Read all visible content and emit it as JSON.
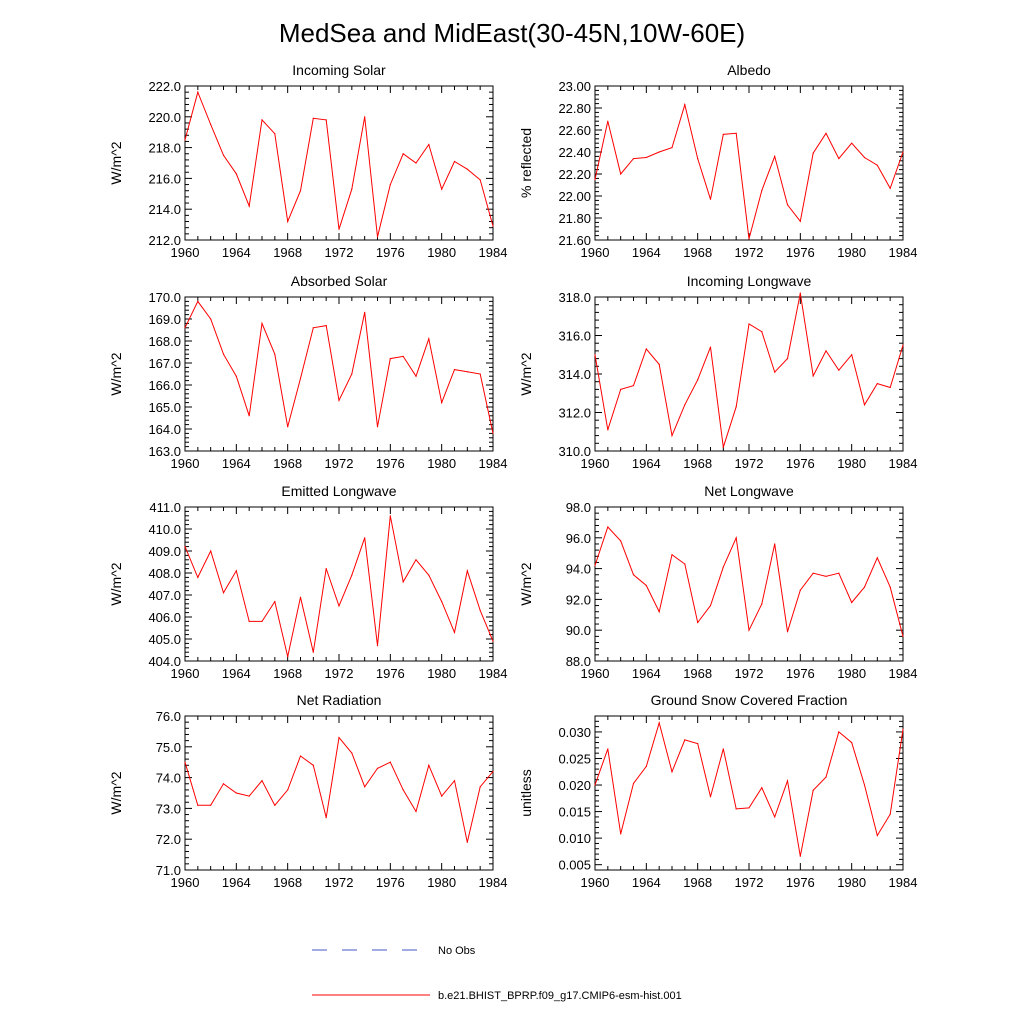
{
  "title": "MedSea and MidEast(30-45N,10W-60E)",
  "legend": {
    "entries": [
      {
        "label": "No Obs",
        "color": "#4455cc",
        "style": "dashed"
      },
      {
        "label": "b.e21.BHIST_BPRP.f09_g17.CMIP6-esm-hist.001",
        "color": "#ff0000",
        "style": "solid"
      }
    ]
  },
  "chart_data": [
    {
      "type": "line",
      "title": "Incoming Solar",
      "ylabel": "W/m^2",
      "xlim": [
        1960,
        1984
      ],
      "ylim": [
        212,
        222
      ],
      "xticks": [
        "1960",
        "1964",
        "1968",
        "1972",
        "1976",
        "1980",
        "1984"
      ],
      "yticks": [
        "212.0",
        "214.0",
        "216.0",
        "218.0",
        "220.0",
        "222.0"
      ],
      "series": [
        {
          "color": "#ff0000",
          "x": [
            1960,
            1961,
            1962,
            1963,
            1964,
            1965,
            1966,
            1967,
            1968,
            1969,
            1970,
            1971,
            1972,
            1973,
            1974,
            1975,
            1976,
            1977,
            1978,
            1979,
            1980,
            1981,
            1982,
            1983,
            1984
          ],
          "values": [
            218.5,
            221.6,
            219.5,
            217.5,
            216.3,
            214.2,
            219.8,
            218.9,
            213.2,
            215.2,
            219.9,
            219.8,
            212.7,
            215.3,
            220.0,
            212.2,
            215.6,
            217.6,
            217.0,
            218.2,
            215.3,
            217.1,
            216.6,
            215.9,
            212.9
          ]
        }
      ]
    },
    {
      "type": "line",
      "title": "Albedo",
      "ylabel": "% reflected",
      "xlim": [
        1960,
        1984
      ],
      "ylim": [
        21.6,
        23.0
      ],
      "xticks": [
        "1960",
        "1964",
        "1968",
        "1972",
        "1976",
        "1980",
        "1984"
      ],
      "yticks": [
        "21.60",
        "21.80",
        "22.00",
        "22.20",
        "22.40",
        "22.60",
        "22.80",
        "23.00"
      ],
      "series": [
        {
          "color": "#ff0000",
          "x": [
            1960,
            1961,
            1962,
            1963,
            1964,
            1965,
            1966,
            1967,
            1968,
            1969,
            1970,
            1971,
            1972,
            1973,
            1974,
            1975,
            1976,
            1977,
            1978,
            1979,
            1980,
            1981,
            1982,
            1983,
            1984
          ],
          "values": [
            22.15,
            22.68,
            22.2,
            22.34,
            22.35,
            22.4,
            22.44,
            22.83,
            22.34,
            21.97,
            22.56,
            22.57,
            21.61,
            22.05,
            22.36,
            21.92,
            21.77,
            22.39,
            22.57,
            22.34,
            22.48,
            22.35,
            22.28,
            22.07,
            22.4
          ]
        }
      ]
    },
    {
      "type": "line",
      "title": "Absorbed Solar",
      "ylabel": "W/m^2",
      "xlim": [
        1960,
        1984
      ],
      "ylim": [
        163,
        170
      ],
      "xticks": [
        "1960",
        "1964",
        "1968",
        "1972",
        "1976",
        "1980",
        "1984"
      ],
      "yticks": [
        "163.0",
        "164.0",
        "165.0",
        "166.0",
        "167.0",
        "168.0",
        "169.0",
        "170.0"
      ],
      "series": [
        {
          "color": "#ff0000",
          "x": [
            1960,
            1961,
            1962,
            1963,
            1964,
            1965,
            1966,
            1967,
            1968,
            1969,
            1970,
            1971,
            1972,
            1973,
            1974,
            1975,
            1976,
            1977,
            1978,
            1979,
            1980,
            1981,
            1982,
            1983,
            1984
          ],
          "values": [
            168.6,
            169.8,
            169.0,
            167.4,
            166.4,
            164.6,
            168.8,
            167.4,
            164.1,
            166.3,
            168.6,
            168.7,
            165.3,
            166.5,
            169.3,
            164.1,
            167.2,
            167.3,
            166.4,
            168.1,
            165.2,
            166.7,
            166.6,
            166.5,
            163.8
          ]
        }
      ]
    },
    {
      "type": "line",
      "title": "Incoming Longwave",
      "ylabel": "W/m^2",
      "xlim": [
        1960,
        1984
      ],
      "ylim": [
        310,
        318
      ],
      "xticks": [
        "1960",
        "1964",
        "1968",
        "1972",
        "1976",
        "1980",
        "1984"
      ],
      "yticks": [
        "310.0",
        "312.0",
        "314.0",
        "316.0",
        "318.0"
      ],
      "series": [
        {
          "color": "#ff0000",
          "x": [
            1960,
            1961,
            1962,
            1963,
            1964,
            1965,
            1966,
            1967,
            1968,
            1969,
            1970,
            1971,
            1972,
            1973,
            1974,
            1975,
            1976,
            1977,
            1978,
            1979,
            1980,
            1981,
            1982,
            1983,
            1984
          ],
          "values": [
            315.0,
            311.1,
            313.2,
            313.4,
            315.3,
            314.5,
            310.8,
            312.4,
            313.7,
            315.4,
            310.2,
            312.3,
            316.6,
            316.2,
            314.1,
            314.8,
            318.2,
            313.9,
            315.2,
            314.2,
            315.0,
            312.4,
            313.5,
            313.3,
            315.5
          ]
        }
      ]
    },
    {
      "type": "line",
      "title": "Emitted Longwave",
      "ylabel": "W/m^2",
      "xlim": [
        1960,
        1984
      ],
      "ylim": [
        404,
        411
      ],
      "xticks": [
        "1960",
        "1964",
        "1968",
        "1972",
        "1976",
        "1980",
        "1984"
      ],
      "yticks": [
        "404.0",
        "405.0",
        "406.0",
        "407.0",
        "408.0",
        "409.0",
        "410.0",
        "411.0"
      ],
      "series": [
        {
          "color": "#ff0000",
          "x": [
            1960,
            1961,
            1962,
            1963,
            1964,
            1965,
            1966,
            1967,
            1968,
            1969,
            1970,
            1971,
            1972,
            1973,
            1974,
            1975,
            1976,
            1977,
            1978,
            1979,
            1980,
            1981,
            1982,
            1983,
            1984
          ],
          "values": [
            409.2,
            407.8,
            409.0,
            407.1,
            408.1,
            405.8,
            405.8,
            406.7,
            404.2,
            406.9,
            404.4,
            408.2,
            406.5,
            407.9,
            409.6,
            404.7,
            410.6,
            407.6,
            408.6,
            407.9,
            406.7,
            405.3,
            408.1,
            406.3,
            404.9
          ]
        }
      ]
    },
    {
      "type": "line",
      "title": "Net Longwave",
      "ylabel": "W/m^2",
      "xlim": [
        1960,
        1984
      ],
      "ylim": [
        88,
        98
      ],
      "xticks": [
        "1960",
        "1964",
        "1968",
        "1972",
        "1976",
        "1980",
        "1984"
      ],
      "yticks": [
        "88.0",
        "90.0",
        "92.0",
        "94.0",
        "96.0",
        "98.0"
      ],
      "series": [
        {
          "color": "#ff0000",
          "x": [
            1960,
            1961,
            1962,
            1963,
            1964,
            1965,
            1966,
            1967,
            1968,
            1969,
            1970,
            1971,
            1972,
            1973,
            1974,
            1975,
            1976,
            1977,
            1978,
            1979,
            1980,
            1981,
            1982,
            1983,
            1984
          ],
          "values": [
            94.2,
            96.7,
            95.8,
            93.6,
            92.9,
            91.2,
            94.9,
            94.3,
            90.5,
            91.6,
            94.1,
            96.0,
            90.0,
            91.7,
            95.6,
            89.9,
            92.6,
            93.7,
            93.5,
            93.7,
            91.8,
            92.8,
            94.7,
            92.8,
            89.6
          ]
        }
      ]
    },
    {
      "type": "line",
      "title": "Net Radiation",
      "ylabel": "W/m^2",
      "xlim": [
        1960,
        1984
      ],
      "ylim": [
        71,
        76
      ],
      "xticks": [
        "1960",
        "1964",
        "1968",
        "1972",
        "1976",
        "1980",
        "1984"
      ],
      "yticks": [
        "71.0",
        "72.0",
        "73.0",
        "74.0",
        "75.0",
        "76.0"
      ],
      "series": [
        {
          "color": "#ff0000",
          "x": [
            1960,
            1961,
            1962,
            1963,
            1964,
            1965,
            1966,
            1967,
            1968,
            1969,
            1970,
            1971,
            1972,
            1973,
            1974,
            1975,
            1976,
            1977,
            1978,
            1979,
            1980,
            1981,
            1982,
            1983,
            1984
          ],
          "values": [
            74.5,
            73.1,
            73.1,
            73.8,
            73.5,
            73.4,
            73.9,
            73.1,
            73.6,
            74.7,
            74.4,
            72.7,
            75.3,
            74.8,
            73.7,
            74.3,
            74.5,
            73.6,
            72.9,
            74.4,
            73.4,
            73.9,
            71.9,
            73.7,
            74.2
          ]
        }
      ]
    },
    {
      "type": "line",
      "title": "Ground Snow Covered Fraction",
      "ylabel": "unitless",
      "xlim": [
        1960,
        1984
      ],
      "ylim": [
        0.004,
        0.033
      ],
      "xticks": [
        "1960",
        "1964",
        "1968",
        "1972",
        "1976",
        "1980",
        "1984"
      ],
      "yticks": [
        "0.005",
        "0.010",
        "0.015",
        "0.020",
        "0.025",
        "0.030"
      ],
      "series": [
        {
          "color": "#ff0000",
          "x": [
            1960,
            1961,
            1962,
            1963,
            1964,
            1965,
            1966,
            1967,
            1968,
            1969,
            1970,
            1971,
            1972,
            1973,
            1974,
            1975,
            1976,
            1977,
            1978,
            1979,
            1980,
            1981,
            1982,
            1983,
            1984
          ],
          "values": [
            0.02,
            0.0268,
            0.0108,
            0.0203,
            0.0235,
            0.0317,
            0.0225,
            0.0285,
            0.0278,
            0.0178,
            0.0268,
            0.0155,
            0.0157,
            0.0195,
            0.014,
            0.0208,
            0.0066,
            0.019,
            0.0215,
            0.03,
            0.028,
            0.02,
            0.0105,
            0.0145,
            0.0305
          ]
        }
      ]
    }
  ]
}
